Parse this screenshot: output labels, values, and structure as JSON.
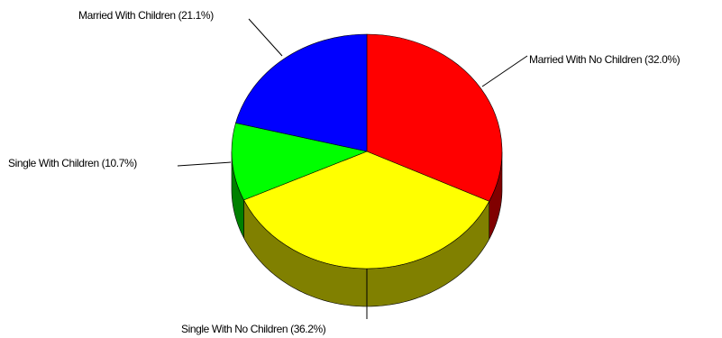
{
  "chart_data": {
    "type": "pie",
    "style": "3d",
    "start_angle_deg": 90,
    "direction": "clockwise",
    "slices": [
      {
        "label": "Married With No Children (32.0%)",
        "value": 32.0,
        "color": "#ff0000",
        "side_color": "#800000"
      },
      {
        "label": "Single With No Children (36.2%)",
        "value": 36.2,
        "color": "#ffff00",
        "side_color": "#808000"
      },
      {
        "label": "Single With Children (10.7%)",
        "value": 10.7,
        "color": "#00ff00",
        "side_color": "#008000"
      },
      {
        "label": "Married With Children (21.1%)",
        "value": 21.1,
        "color": "#0000ff",
        "side_color": "#000080"
      }
    ],
    "legend": "none",
    "grid": false
  }
}
